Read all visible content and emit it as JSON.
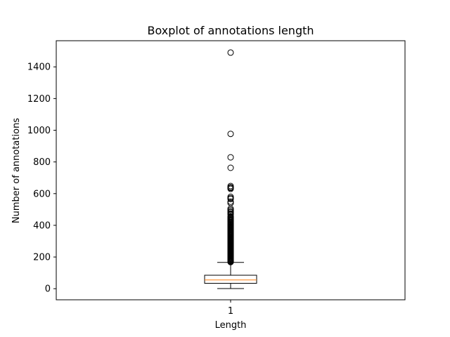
{
  "chart_data": {
    "type": "box",
    "title": "Boxplot of annotations length",
    "xlabel": "Length",
    "ylabel": "Number of annotations",
    "categories": [
      "1"
    ],
    "ylim": [
      -70,
      1565
    ],
    "yticks": [
      0,
      200,
      400,
      600,
      800,
      1000,
      1200,
      1400
    ],
    "grid": false,
    "box": {
      "whisker_low": 1,
      "q1": 34,
      "median": 55,
      "q3": 85,
      "whisker_high": 166
    },
    "outliers": [
      1490,
      977,
      829,
      763,
      648,
      640,
      636,
      630,
      580,
      572,
      566,
      549,
      540,
      505,
      497,
      489,
      483,
      475,
      468,
      456,
      452,
      447,
      442,
      437,
      432,
      428,
      423,
      418,
      413,
      408,
      404,
      399,
      395,
      390,
      386,
      381,
      377,
      372,
      368,
      363,
      359,
      354,
      350,
      346,
      341,
      337,
      333,
      328,
      324,
      320,
      316,
      311,
      307,
      303,
      299,
      295,
      291,
      287,
      283,
      279,
      275,
      271,
      267,
      263,
      259,
      255,
      251,
      247,
      243,
      239,
      235,
      231,
      227,
      223,
      219,
      215,
      211,
      207,
      203,
      199,
      195,
      191,
      187,
      183,
      179,
      175,
      171,
      168
    ],
    "colors": {
      "median": "#ff7f0e",
      "box": "#000000",
      "outlier": "#000000"
    }
  }
}
